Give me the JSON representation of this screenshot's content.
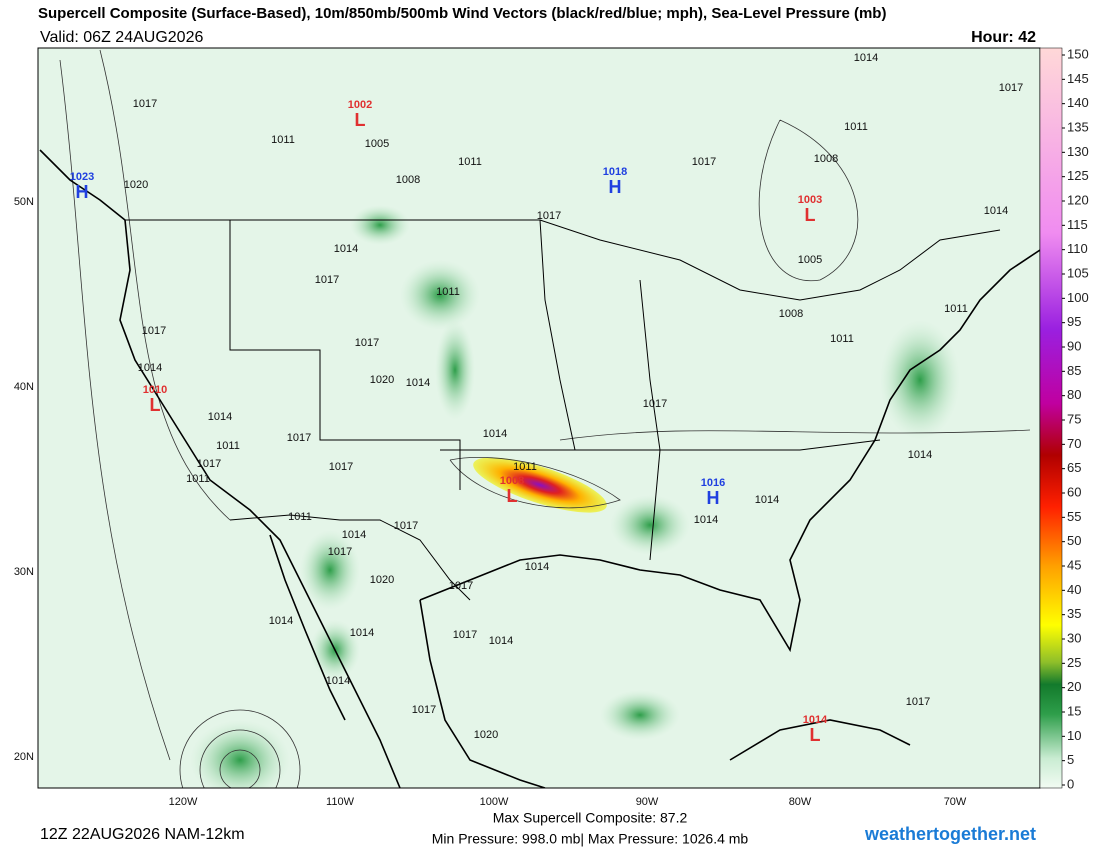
{
  "header": {
    "title": "Supercell Composite (Surface-Based), 10m/850mb/500mb Wind Vectors (black/red/blue; mph), Sea-Level Pressure (mb)",
    "valid": "Valid: 06Z 24AUG2026",
    "hour": "Hour: 42"
  },
  "map": {
    "lat_labels": [
      "50N",
      "40N",
      "30N",
      "20N"
    ],
    "lon_labels": [
      "120W",
      "110W",
      "100W",
      "90W",
      "80W",
      "70W"
    ],
    "pressure_centers": [
      {
        "letter": "L",
        "value": 1002
      },
      {
        "letter": "H",
        "value": 1023
      },
      {
        "letter": "H",
        "value": 1018
      },
      {
        "letter": "L",
        "value": 1003
      },
      {
        "letter": "L",
        "value": 1010
      },
      {
        "letter": "L",
        "value": 1008
      },
      {
        "letter": "H",
        "value": 1016
      },
      {
        "letter": "L",
        "value": 1014
      }
    ],
    "isobar_labels": [
      1017,
      1011,
      1005,
      1008,
      1011,
      1017,
      1011,
      1008,
      1014,
      1017,
      1014,
      1020,
      1017,
      1014,
      1017,
      1011,
      1017,
      1017,
      1005,
      1008,
      1011,
      1011,
      1014,
      1014,
      1011,
      1017,
      1011,
      1017,
      1020,
      1014,
      1017,
      1017,
      1014,
      1011,
      1014,
      1014,
      1014,
      1011,
      1014,
      1017,
      1017,
      1014,
      1020,
      1017,
      1014,
      1014,
      1017,
      1014,
      1014,
      1017,
      1020,
      1017
    ]
  },
  "colorbar": {
    "ticks": [
      0,
      5,
      10,
      15,
      20,
      25,
      30,
      35,
      40,
      45,
      50,
      55,
      60,
      65,
      70,
      75,
      80,
      85,
      90,
      95,
      100,
      105,
      110,
      115,
      120,
      125,
      130,
      135,
      140,
      145,
      150
    ]
  },
  "footer": {
    "run": "12Z 22AUG2026 NAM-12km",
    "max_scp": "Max Supercell Composite:  87.2",
    "pressure_range": "Min Pressure: 998.0 mb| Max Pressure: 1026.4 mb",
    "site": "weathertogether.net"
  }
}
